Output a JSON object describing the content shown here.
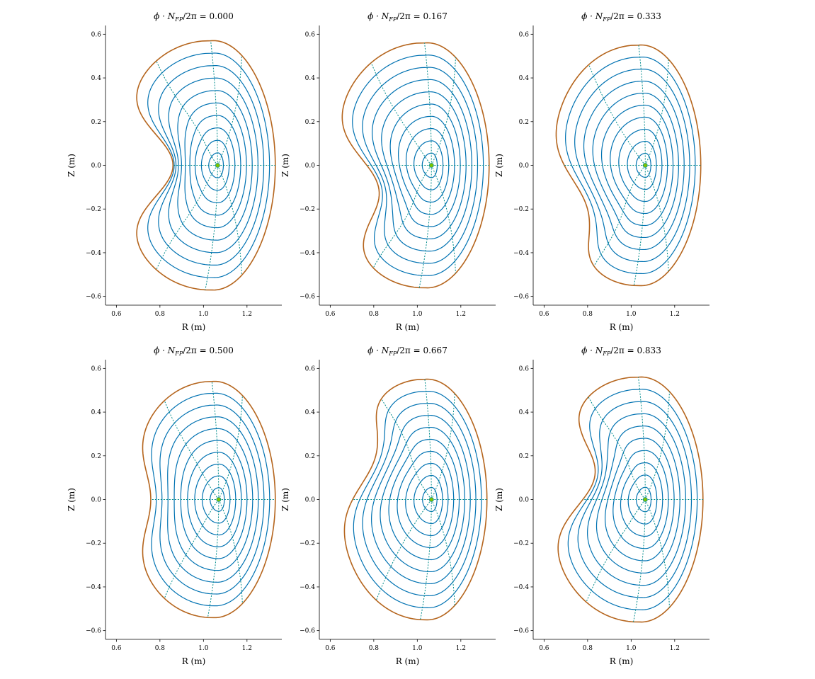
{
  "figure": {
    "colors": {
      "flux_surface": "#0072b2",
      "boundary": "#b5651d",
      "theta_line": "#008b8b",
      "magnetic_axis": "#7cc400"
    }
  },
  "chart_data": [
    {
      "type": "line",
      "title": "ϕ·N_FP/2π = 0.000",
      "title_symbol": "ϕ · N",
      "title_sub": "FP",
      "title_rest": "/2π = ",
      "title_value": "0.000",
      "xlabel": "R (m)",
      "ylabel": "Z (m)",
      "xlim": [
        0.55,
        1.36
      ],
      "ylim": [
        -0.64,
        0.64
      ],
      "x_ticks": [
        0.6,
        0.8,
        1.0,
        1.2
      ],
      "x_tick_labels": [
        "0.6",
        "0.8",
        "1.0",
        "1.2"
      ],
      "y_ticks": [
        -0.6,
        -0.4,
        -0.2,
        0.0,
        0.2,
        0.4,
        0.6
      ],
      "y_tick_labels": [
        "−0.6",
        "−0.4",
        "−0.2",
        "0.0",
        "0.2",
        "0.4",
        "0.6"
      ],
      "phase": 0.0,
      "magnetic_axis": [
        1.065,
        0.0
      ],
      "boundary": {
        "r_min": 0.59,
        "r_max": 1.33,
        "z_half_height": 0.57,
        "indent": 0.3,
        "indent_z": 0.0
      },
      "n_flux_surfaces": 9,
      "n_theta_lines": 8
    },
    {
      "type": "line",
      "title": "ϕ·N_FP/2π = 0.167",
      "title_symbol": "ϕ · N",
      "title_sub": "FP",
      "title_rest": "/2π = ",
      "title_value": "0.167",
      "xlabel": "R (m)",
      "ylabel": "Z (m)",
      "xlim": [
        0.55,
        1.36
      ],
      "ylim": [
        -0.64,
        0.64
      ],
      "x_ticks": [
        0.6,
        0.8,
        1.0,
        1.2
      ],
      "x_tick_labels": [
        "0.6",
        "0.8",
        "1.0",
        "1.2"
      ],
      "y_ticks": [
        -0.6,
        -0.4,
        -0.2,
        0.0,
        0.2,
        0.4,
        0.6
      ],
      "y_tick_labels": [
        "−0.6",
        "−0.4",
        "−0.2",
        "0.0",
        "0.2",
        "0.4",
        "0.6"
      ],
      "phase": 0.167,
      "magnetic_axis": [
        1.065,
        0.0
      ],
      "boundary": {
        "r_min": 0.6,
        "r_max": 1.33,
        "z_half_height": 0.56,
        "indent": 0.24,
        "indent_z": -0.11
      },
      "n_flux_surfaces": 9,
      "n_theta_lines": 8
    },
    {
      "type": "line",
      "title": "ϕ·N_FP/2π = 0.333",
      "title_symbol": "ϕ · N",
      "title_sub": "FP",
      "title_rest": "/2π = ",
      "title_value": "0.333",
      "xlabel": "R (m)",
      "ylabel": "Z (m)",
      "xlim": [
        0.55,
        1.36
      ],
      "ylim": [
        -0.64,
        0.64
      ],
      "x_ticks": [
        0.6,
        0.8,
        1.0,
        1.2
      ],
      "x_tick_labels": [
        "0.6",
        "0.8",
        "1.0",
        "1.2"
      ],
      "y_ticks": [
        -0.6,
        -0.4,
        -0.2,
        0.0,
        0.2,
        0.4,
        0.6
      ],
      "y_tick_labels": [
        "−0.6",
        "−0.4",
        "−0.2",
        "0.0",
        "0.2",
        "0.4",
        "0.6"
      ],
      "phase": 0.333,
      "magnetic_axis": [
        1.065,
        0.0
      ],
      "boundary": {
        "r_min": 0.63,
        "r_max": 1.32,
        "z_half_height": 0.55,
        "indent": 0.16,
        "indent_z": -0.2
      },
      "n_flux_surfaces": 9,
      "n_theta_lines": 8
    },
    {
      "type": "line",
      "title": "ϕ·N_FP/2π = 0.500",
      "title_symbol": "ϕ · N",
      "title_sub": "FP",
      "title_rest": "/2π = ",
      "title_value": "0.500",
      "xlabel": "R (m)",
      "ylabel": "Z (m)",
      "xlim": [
        0.55,
        1.36
      ],
      "ylim": [
        -0.64,
        0.64
      ],
      "x_ticks": [
        0.6,
        0.8,
        1.0,
        1.2
      ],
      "x_tick_labels": [
        "0.6",
        "0.8",
        "1.0",
        "1.2"
      ],
      "y_ticks": [
        -0.6,
        -0.4,
        -0.2,
        0.0,
        0.2,
        0.4,
        0.6
      ],
      "y_tick_labels": [
        "−0.6",
        "−0.4",
        "−0.2",
        "0.0",
        "0.2",
        "0.4",
        "0.6"
      ],
      "phase": 0.5,
      "magnetic_axis": [
        1.07,
        0.0
      ],
      "boundary": {
        "r_min": 0.65,
        "r_max": 1.33,
        "z_half_height": 0.54,
        "indent": 0.12,
        "indent_z": 0.0
      },
      "n_flux_surfaces": 9,
      "n_theta_lines": 8
    },
    {
      "type": "line",
      "title": "ϕ·N_FP/2π = 0.667",
      "title_symbol": "ϕ · N",
      "title_sub": "FP",
      "title_rest": "/2π = ",
      "title_value": "0.667",
      "xlabel": "R (m)",
      "ylabel": "Z (m)",
      "xlim": [
        0.55,
        1.36
      ],
      "ylim": [
        -0.64,
        0.64
      ],
      "x_ticks": [
        0.6,
        0.8,
        1.0,
        1.2
      ],
      "x_tick_labels": [
        "0.6",
        "0.8",
        "1.0",
        "1.2"
      ],
      "y_ticks": [
        -0.6,
        -0.4,
        -0.2,
        0.0,
        0.2,
        0.4,
        0.6
      ],
      "y_tick_labels": [
        "−0.6",
        "−0.4",
        "−0.2",
        "0.0",
        "0.2",
        "0.4",
        "0.6"
      ],
      "phase": 0.667,
      "magnetic_axis": [
        1.065,
        0.0
      ],
      "boundary": {
        "r_min": 0.64,
        "r_max": 1.32,
        "z_half_height": 0.55,
        "indent": 0.16,
        "indent_z": 0.2
      },
      "n_flux_surfaces": 9,
      "n_theta_lines": 8
    },
    {
      "type": "line",
      "title": "ϕ·N_FP/2π = 0.833",
      "title_symbol": "ϕ · N",
      "title_sub": "FP",
      "title_rest": "/2π = ",
      "title_value": "0.833",
      "xlabel": "R (m)",
      "ylabel": "Z (m)",
      "xlim": [
        0.55,
        1.36
      ],
      "ylim": [
        -0.64,
        0.64
      ],
      "x_ticks": [
        0.6,
        0.8,
        1.0,
        1.2
      ],
      "x_tick_labels": [
        "0.6",
        "0.8",
        "1.0",
        "1.2"
      ],
      "y_ticks": [
        -0.6,
        -0.4,
        -0.2,
        0.0,
        0.2,
        0.4,
        0.6
      ],
      "y_tick_labels": [
        "−0.6",
        "−0.4",
        "−0.2",
        "0.0",
        "0.2",
        "0.4",
        "0.6"
      ],
      "phase": 0.833,
      "magnetic_axis": [
        1.065,
        0.0
      ],
      "boundary": {
        "r_min": 0.61,
        "r_max": 1.33,
        "z_half_height": 0.56,
        "indent": 0.24,
        "indent_z": 0.11
      },
      "n_flux_surfaces": 9,
      "n_theta_lines": 8
    }
  ]
}
